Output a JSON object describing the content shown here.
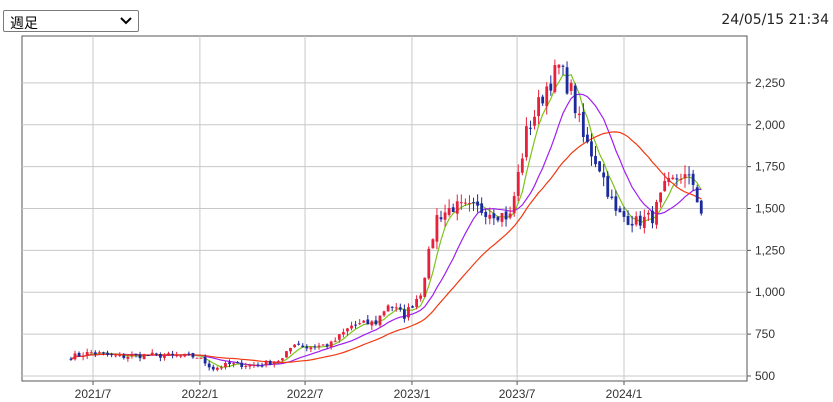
{
  "header": {
    "period_selector": {
      "selected": "週足"
    },
    "timestamp": "24/05/15 21:34"
  },
  "colors": {
    "up_candle": "#e8203c",
    "down_candle": "#1b2a9c",
    "ma_short": "#7cc41a",
    "ma_mid": "#a020f0",
    "ma_long": "#f03a12",
    "grid": "#c8c8c8",
    "frame": "#555555"
  },
  "chart_data": {
    "type": "candlestick",
    "title": "",
    "xlabel": "",
    "ylabel": "",
    "ylim": [
      500,
      2500
    ],
    "yticks": [
      {
        "value": 500,
        "label": "500"
      },
      {
        "value": 750,
        "label": "750"
      },
      {
        "value": 1000,
        "label": "1,000"
      },
      {
        "value": 1250,
        "label": "1,250"
      },
      {
        "value": 1500,
        "label": "1,500"
      },
      {
        "value": 1750,
        "label": "1,750"
      },
      {
        "value": 2000,
        "label": "2,000"
      },
      {
        "value": 2250,
        "label": "2,250"
      }
    ],
    "xticks": [
      "2021/7",
      "2022/1",
      "2022/7",
      "2023/1",
      "2023/7",
      "2024/1"
    ],
    "grid": true,
    "close_anchors": [
      {
        "date": "2021-05-24",
        "value": 615
      },
      {
        "date": "2021-06-28",
        "value": 640
      },
      {
        "date": "2021-08-16",
        "value": 615
      },
      {
        "date": "2021-10-04",
        "value": 625
      },
      {
        "date": "2021-12-27",
        "value": 615
      },
      {
        "date": "2022-01-24",
        "value": 545
      },
      {
        "date": "2022-02-21",
        "value": 570
      },
      {
        "date": "2022-04-11",
        "value": 565
      },
      {
        "date": "2022-05-23",
        "value": 600
      },
      {
        "date": "2022-06-13",
        "value": 700
      },
      {
        "date": "2022-07-04",
        "value": 670
      },
      {
        "date": "2022-08-15",
        "value": 690
      },
      {
        "date": "2022-09-19",
        "value": 800
      },
      {
        "date": "2022-10-31",
        "value": 820
      },
      {
        "date": "2022-11-21",
        "value": 930
      },
      {
        "date": "2022-12-19",
        "value": 860
      },
      {
        "date": "2023-01-16",
        "value": 1000
      },
      {
        "date": "2023-02-13",
        "value": 1450
      },
      {
        "date": "2023-03-13",
        "value": 1510
      },
      {
        "date": "2023-05-08",
        "value": 1490
      },
      {
        "date": "2023-06-19",
        "value": 1450
      },
      {
        "date": "2023-07-17",
        "value": 1950
      },
      {
        "date": "2023-08-21",
        "value": 2230
      },
      {
        "date": "2023-09-11",
        "value": 2340
      },
      {
        "date": "2023-10-02",
        "value": 2200
      },
      {
        "date": "2023-10-23",
        "value": 1920
      },
      {
        "date": "2023-11-20",
        "value": 1750
      },
      {
        "date": "2023-12-18",
        "value": 1470
      },
      {
        "date": "2024-01-22",
        "value": 1420
      },
      {
        "date": "2024-02-19",
        "value": 1450
      },
      {
        "date": "2024-03-11",
        "value": 1620
      },
      {
        "date": "2024-04-08",
        "value": 1700
      },
      {
        "date": "2024-04-29",
        "value": 1650
      },
      {
        "date": "2024-05-13",
        "value": 1470
      }
    ]
  }
}
